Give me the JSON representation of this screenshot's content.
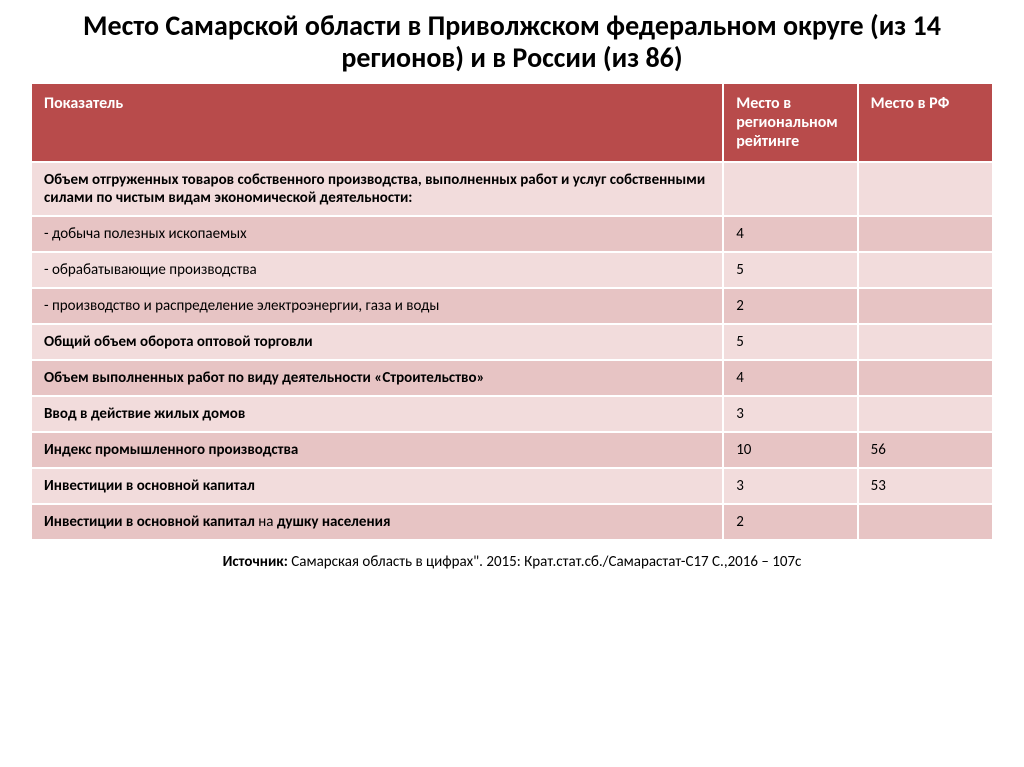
{
  "title": "Место Самарской области в Приволжском федеральном округе (из 14 регионов) и в России (из 86)",
  "title_fontsize": 28,
  "title_color": "#000000",
  "header": {
    "bg": "#b84b4b",
    "fg": "#ffffff",
    "fontsize": 16,
    "cols": [
      "Показатель",
      "Место в региональном рейтинге",
      "Место в РФ"
    ]
  },
  "row_colors": {
    "odd": "#f2dcdc",
    "even": "#e7c4c4"
  },
  "row_fontsize": 15,
  "row_bold_color": "#000000",
  "rows": [
    {
      "indicator": "Объем отгруженных товаров собственного производства, выполненных работ и услуг собственными силами по чистым видам экономической деятельности:",
      "regional": "",
      "rf": "",
      "bold": true
    },
    {
      "indicator": "- добыча полезных ископаемых",
      "regional": "4",
      "rf": "",
      "bold": false
    },
    {
      "indicator": "- обрабатывающие производства",
      "regional": "5",
      "rf": "",
      "bold": false
    },
    {
      "indicator": "- производство и распределение электроэнергии, газа и воды",
      "regional": "2",
      "rf": "",
      "bold": false
    },
    {
      "indicator": "Общий объем оборота оптовой торговли",
      "regional": "5",
      "rf": "",
      "bold": true
    },
    {
      "indicator": "Объем выполненных работ по виду деятельности «Строительство»",
      "regional": "4",
      "rf": "",
      "bold": true
    },
    {
      "indicator": "Ввод в действие жилых домов",
      "regional": "3",
      "rf": "",
      "bold": true
    },
    {
      "indicator": "Индекс промышленного производства",
      "regional": "10",
      "rf": "56",
      "bold": true
    },
    {
      "indicator": "Инвестиции в основной капитал",
      "regional": "3",
      "rf": "53",
      "bold": true
    },
    {
      "indicator_html": "<b>Инвестиции в основной капитал </b>на<b> душку населения</b>",
      "regional": "2",
      "rf": "",
      "bold": false
    }
  ],
  "source": {
    "prefix": "Источник: ",
    "text": "Самарская область в цифрах\". 2015: Крат.стат.сб./Самарастат-С17 С.,2016 – 107с",
    "fontsize": 15,
    "color": "#000000"
  }
}
